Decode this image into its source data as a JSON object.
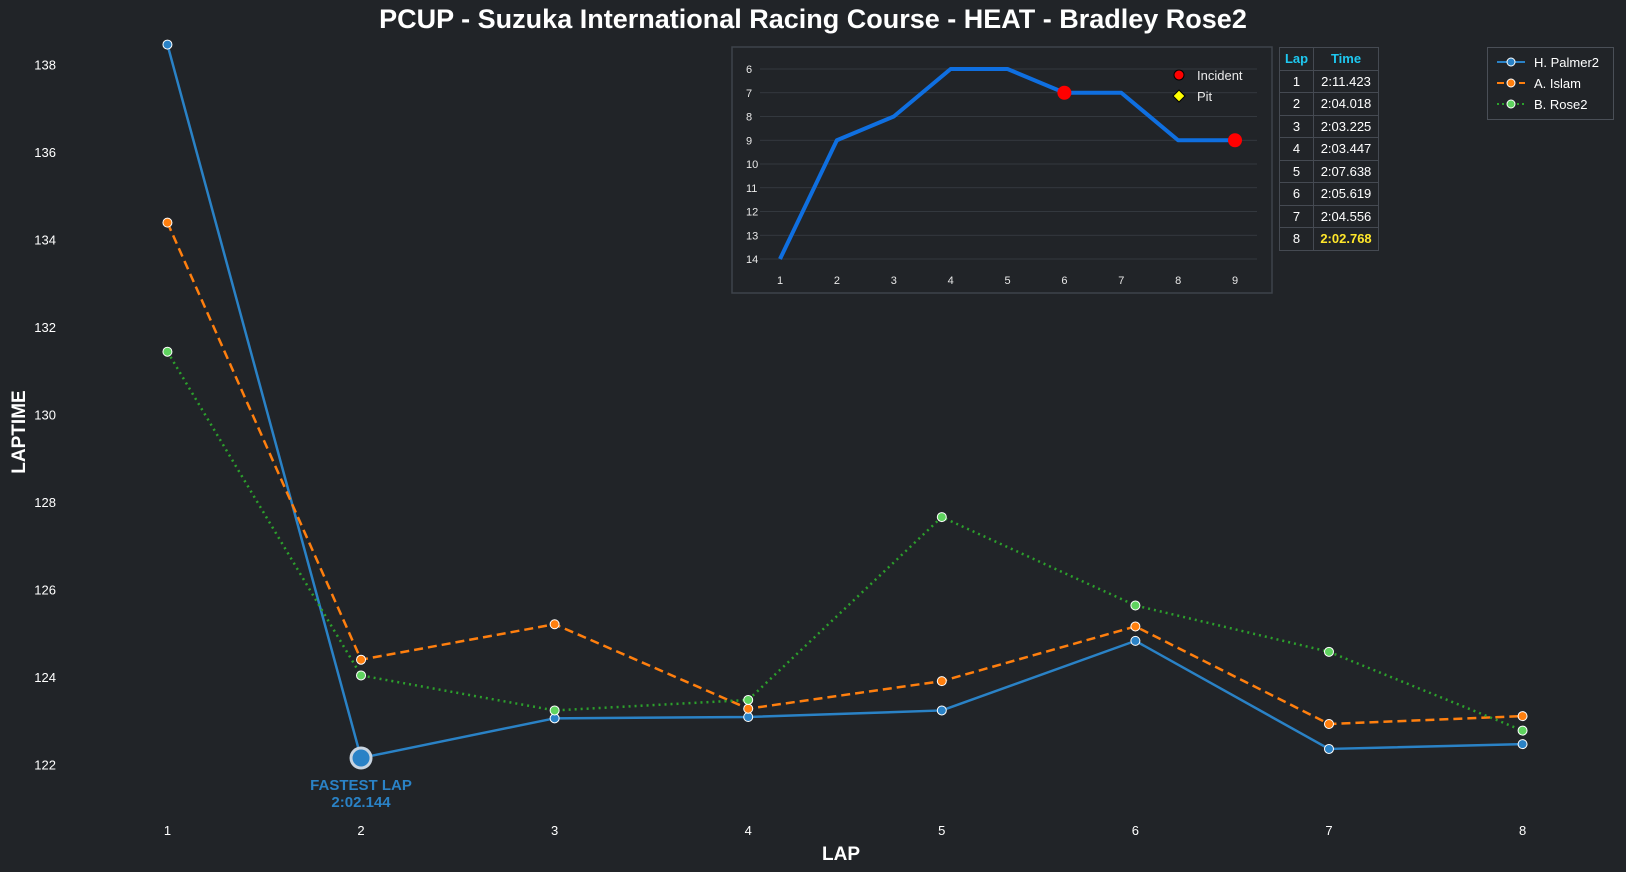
{
  "title": "PCUP - Suzuka International Racing Course - HEAT - Bradley Rose2",
  "colors": {
    "background": "#212428",
    "palmer": "#2a82c6",
    "islam": "#ff7f0e",
    "rose": "#2ca02c",
    "position_line": "#0f6fe0",
    "incident": "#ff0000",
    "pit": "#ffff00",
    "table_header": "#1ec8f0",
    "best_time": "#ffe62a"
  },
  "chart_data": [
    {
      "type": "line",
      "xlabel": "LAP",
      "ylabel": "LAPTIME",
      "x": [
        1,
        2,
        3,
        4,
        5,
        6,
        7,
        8
      ],
      "xlim": [
        0.6,
        8.4
      ],
      "ylim": [
        121,
        138.6
      ],
      "yticks": [
        122,
        124,
        126,
        128,
        130,
        132,
        134,
        136,
        138
      ],
      "grid": false,
      "legend_position": "top-right",
      "series": [
        {
          "name": "H. Palmer2",
          "style": "solid",
          "values": [
            138.45,
            122.144,
            123.05,
            123.08,
            123.23,
            124.82,
            122.35,
            122.46
          ]
        },
        {
          "name": "A. Islam",
          "style": "dashed",
          "values": [
            134.38,
            124.39,
            125.2,
            123.27,
            123.9,
            125.15,
            122.92,
            123.1
          ]
        },
        {
          "name": "B. Rose2",
          "style": "dotted",
          "values": [
            131.43,
            124.03,
            123.23,
            123.47,
            127.65,
            125.63,
            124.57,
            122.77
          ]
        }
      ],
      "annotation": {
        "x": 2,
        "y": 122.144,
        "line1": "FASTEST LAP",
        "line2": "2:02.144"
      }
    },
    {
      "type": "line",
      "subject": "position",
      "x": [
        1,
        2,
        3,
        4,
        5,
        6,
        7,
        8,
        9
      ],
      "values": [
        14,
        9,
        8,
        6,
        6,
        7,
        7,
        9,
        9
      ],
      "ylim": [
        14,
        6
      ],
      "yticks": [
        6,
        7,
        8,
        9,
        10,
        11,
        12,
        13,
        14
      ],
      "y_inverted": true,
      "grid": true,
      "incidents": [
        6,
        9
      ],
      "pits": [],
      "legend": [
        {
          "label": "Incident",
          "marker": "circle",
          "color": "#ff0000"
        },
        {
          "label": "Pit",
          "marker": "diamond",
          "color": "#ffff00"
        }
      ]
    }
  ],
  "lap_table": {
    "headers": [
      "Lap",
      "Time"
    ],
    "rows": [
      {
        "lap": "1",
        "time": "2:11.423"
      },
      {
        "lap": "2",
        "time": "2:04.018"
      },
      {
        "lap": "3",
        "time": "2:03.225"
      },
      {
        "lap": "4",
        "time": "2:03.447"
      },
      {
        "lap": "5",
        "time": "2:07.638"
      },
      {
        "lap": "6",
        "time": "2:05.619"
      },
      {
        "lap": "7",
        "time": "2:04.556"
      },
      {
        "lap": "8",
        "time": "2:02.768"
      }
    ],
    "best_lap": "8"
  }
}
